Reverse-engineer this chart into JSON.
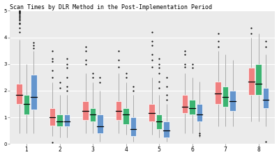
{
  "title": "Scan Times by DLR Method in the Post-Implementation Period",
  "title_fontsize": 6.0,
  "background_color": "#ffffff",
  "panel_color": "#ebebeb",
  "grid_color": "#ffffff",
  "colors": {
    "red": "#F08080",
    "green": "#3CB371",
    "blue": "#6495CD"
  },
  "ylim": [
    0,
    5
  ],
  "yticks": [
    0,
    1,
    2,
    3,
    4,
    5
  ],
  "n_groups": 8,
  "groups": [
    {
      "x_label": "1",
      "red": {
        "q1": 1.5,
        "median": 1.85,
        "q3": 2.25,
        "whislo": 0.4,
        "whishi": 3.9,
        "fliers_hi": [
          4.2,
          4.35,
          4.5,
          4.55,
          4.65,
          4.7,
          4.75,
          4.8,
          4.85,
          4.9,
          4.92,
          4.95,
          4.97,
          5.0
        ],
        "fliers_lo": []
      },
      "green": {
        "q1": 1.1,
        "median": 1.5,
        "q3": 1.85,
        "whislo": 0.4,
        "whishi": 3.0,
        "fliers_hi": [],
        "fliers_lo": []
      },
      "blue": {
        "q1": 1.3,
        "median": 1.75,
        "q3": 2.6,
        "whislo": 0.4,
        "whishi": 3.5,
        "fliers_hi": [
          3.6,
          3.7,
          3.8
        ],
        "fliers_lo": []
      }
    },
    {
      "x_label": "2",
      "red": {
        "q1": 0.7,
        "median": 1.0,
        "q3": 1.35,
        "whislo": 0.3,
        "whishi": 2.3,
        "fliers_hi": [
          2.5,
          2.75,
          3.1,
          3.2,
          3.5
        ],
        "fliers_lo": [
          0.05
        ]
      },
      "green": {
        "q1": 0.65,
        "median": 0.85,
        "q3": 1.1,
        "whislo": 0.25,
        "whishi": 1.85,
        "fliers_hi": [
          2.1,
          2.3
        ],
        "fliers_lo": []
      },
      "blue": {
        "q1": 0.65,
        "median": 0.85,
        "q3": 1.1,
        "whislo": 0.25,
        "whishi": 1.85,
        "fliers_hi": [
          2.0,
          2.15,
          2.5,
          2.85,
          3.0,
          3.2
        ],
        "fliers_lo": []
      }
    },
    {
      "x_label": "3",
      "red": {
        "q1": 0.9,
        "median": 1.25,
        "q3": 1.6,
        "whislo": 0.4,
        "whishi": 2.65,
        "fliers_hi": [
          3.0,
          3.15,
          3.5,
          3.65
        ],
        "fliers_lo": []
      },
      "green": {
        "q1": 0.85,
        "median": 1.1,
        "q3": 1.35,
        "whislo": 0.4,
        "whishi": 2.3,
        "fliers_hi": [
          2.5,
          2.65
        ],
        "fliers_lo": []
      },
      "blue": {
        "q1": 0.4,
        "median": 0.65,
        "q3": 1.1,
        "whislo": 0.08,
        "whishi": 2.0,
        "fliers_hi": [
          2.3,
          2.5
        ],
        "fliers_lo": []
      }
    },
    {
      "x_label": "4",
      "red": {
        "q1": 0.9,
        "median": 1.25,
        "q3": 1.6,
        "whislo": 0.4,
        "whishi": 2.65,
        "fliers_hi": [
          2.9,
          3.15,
          3.5
        ],
        "fliers_lo": []
      },
      "green": {
        "q1": 0.75,
        "median": 1.1,
        "q3": 1.35,
        "whislo": 0.35,
        "whishi": 2.3,
        "fliers_hi": [
          2.5,
          2.65
        ],
        "fliers_lo": []
      },
      "blue": {
        "q1": 0.3,
        "median": 0.55,
        "q3": 1.0,
        "whislo": 0.08,
        "whishi": 1.85,
        "fliers_hi": [
          2.0,
          2.15
        ],
        "fliers_lo": []
      }
    },
    {
      "x_label": "5",
      "red": {
        "q1": 0.85,
        "median": 1.15,
        "q3": 1.5,
        "whislo": 0.35,
        "whishi": 2.5,
        "fliers_hi": [
          2.9,
          3.15,
          3.35,
          3.7,
          3.85,
          4.2
        ],
        "fliers_lo": []
      },
      "green": {
        "q1": 0.55,
        "median": 0.85,
        "q3": 1.1,
        "whislo": 0.25,
        "whishi": 1.85,
        "fliers_hi": [
          2.1,
          2.35,
          2.65,
          2.85,
          3.0,
          3.2
        ],
        "fliers_lo": []
      },
      "blue": {
        "q1": 0.25,
        "median": 0.5,
        "q3": 0.85,
        "whislo": 0.08,
        "whishi": 1.5,
        "fliers_hi": [
          1.65,
          1.85,
          2.15,
          2.5
        ],
        "fliers_lo": []
      }
    },
    {
      "x_label": "6",
      "red": {
        "q1": 1.15,
        "median": 1.4,
        "q3": 1.85,
        "whislo": 0.4,
        "whishi": 2.65,
        "fliers_hi": [
          2.9,
          3.0,
          3.35,
          3.5
        ],
        "fliers_lo": []
      },
      "green": {
        "q1": 1.1,
        "median": 1.35,
        "q3": 1.65,
        "whislo": 0.4,
        "whishi": 2.5,
        "fliers_hi": [
          2.85,
          3.0
        ],
        "fliers_lo": []
      },
      "blue": {
        "q1": 0.85,
        "median": 1.1,
        "q3": 1.5,
        "whislo": 0.25,
        "whishi": 2.35,
        "fliers_hi": [],
        "fliers_lo": [
          0.33,
          0.4
        ]
      }
    },
    {
      "x_label": "7",
      "red": {
        "q1": 1.5,
        "median": 1.9,
        "q3": 2.35,
        "whislo": 0.65,
        "whishi": 3.5,
        "fliers_hi": [
          3.65,
          3.85,
          4.15
        ],
        "fliers_lo": []
      },
      "green": {
        "q1": 1.4,
        "median": 1.75,
        "q3": 2.15,
        "whislo": 0.65,
        "whishi": 3.35,
        "fliers_hi": [],
        "fliers_lo": []
      },
      "blue": {
        "q1": 1.25,
        "median": 1.6,
        "q3": 2.0,
        "whislo": 0.65,
        "whishi": 3.15,
        "fliers_hi": [],
        "fliers_lo": []
      }
    },
    {
      "x_label": "8",
      "red": {
        "q1": 1.85,
        "median": 2.35,
        "q3": 2.85,
        "whislo": 0.85,
        "whishi": 4.0,
        "fliers_hi": [
          4.15,
          4.35
        ],
        "fliers_lo": []
      },
      "green": {
        "q1": 1.85,
        "median": 2.25,
        "q3": 3.0,
        "whislo": 0.85,
        "whishi": 4.15,
        "fliers_hi": [],
        "fliers_lo": []
      },
      "blue": {
        "q1": 1.35,
        "median": 1.65,
        "q3": 2.1,
        "whislo": 0.65,
        "whishi": 3.35,
        "fliers_hi": [
          3.65,
          3.85
        ],
        "fliers_lo": [
          0.08
        ]
      }
    }
  ]
}
